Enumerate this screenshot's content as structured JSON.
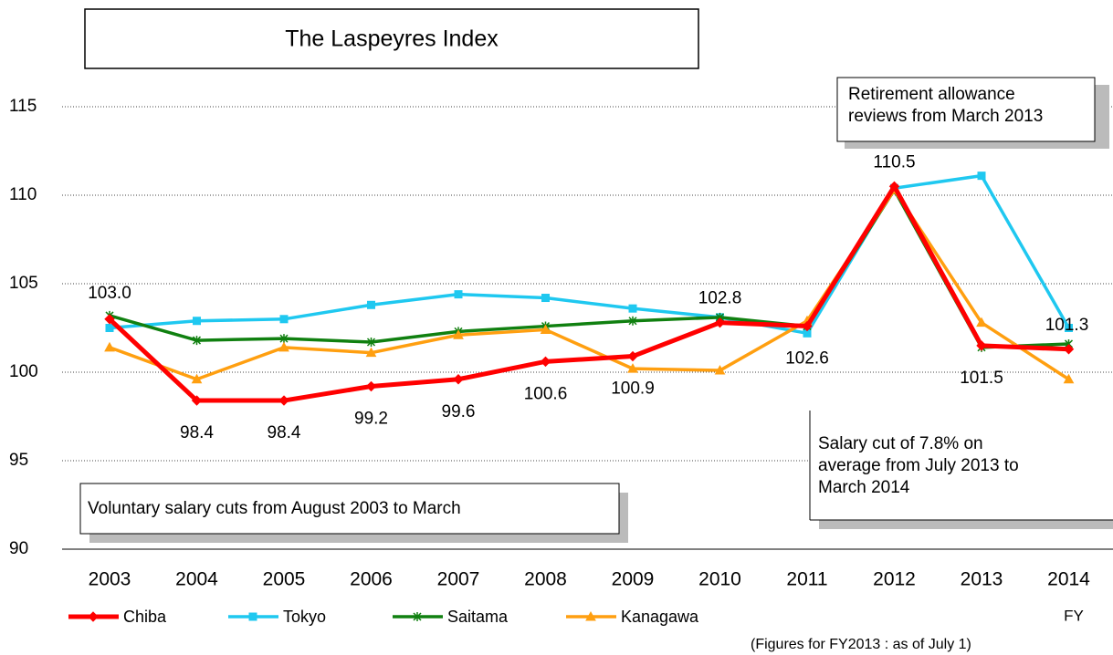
{
  "chart_data": {
    "type": "line",
    "title": "The Laspeyres Index",
    "categories": [
      "2003",
      "2004",
      "2005",
      "2006",
      "2007",
      "2008",
      "2009",
      "2010",
      "2011",
      "2012",
      "2013",
      "2014"
    ],
    "x_label": "FY",
    "series": [
      {
        "name": "Chiba",
        "color": "#ff0000",
        "marker": "diamond",
        "values": [
          103.0,
          98.4,
          98.4,
          99.2,
          99.6,
          100.6,
          100.9,
          102.8,
          102.6,
          110.5,
          101.5,
          101.3
        ],
        "value_labels": [
          "103.0",
          "98.4",
          "98.4",
          "99.2",
          "99.6",
          "100.6",
          "100.9",
          "102.8",
          "102.6",
          "110.5",
          "101.5",
          "101.3"
        ]
      },
      {
        "name": "Tokyo",
        "color": "#1fc8f0",
        "marker": "square",
        "values": [
          102.5,
          102.9,
          103.0,
          103.8,
          104.4,
          104.2,
          103.6,
          103.1,
          102.2,
          110.4,
          111.1,
          102.5
        ]
      },
      {
        "name": "Saitama",
        "color": "#108010",
        "marker": "x",
        "values": [
          103.2,
          101.8,
          101.9,
          101.7,
          102.3,
          102.6,
          102.9,
          103.1,
          102.6,
          110.3,
          101.4,
          101.6
        ]
      },
      {
        "name": "Kanagawa",
        "color": "#ff9f10",
        "marker": "triangle",
        "values": [
          101.4,
          99.6,
          101.4,
          101.1,
          102.1,
          102.4,
          100.2,
          100.1,
          102.9,
          110.3,
          102.8,
          99.6
        ]
      }
    ],
    "ylim": [
      90,
      115
    ],
    "yticks": [
      90,
      95,
      100,
      105,
      110,
      115
    ],
    "grid": true,
    "annotations": [
      "Retirement allowance reviews from March 2013",
      "Salary cut of 7.8% on average from July 2013 to March 2014",
      "Voluntary salary cuts from August 2003 to March"
    ],
    "note": "(Figures for FY2013 : as of July 1)"
  }
}
